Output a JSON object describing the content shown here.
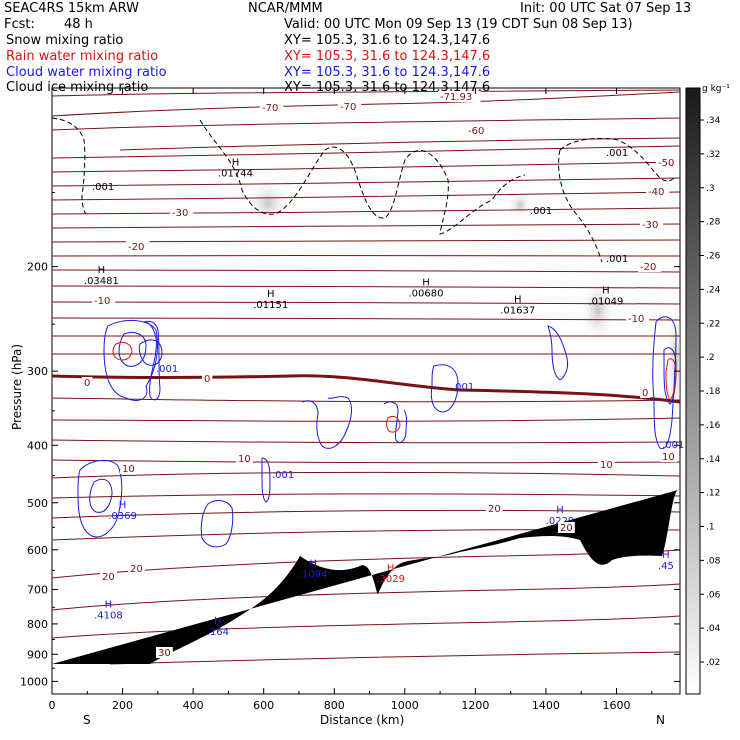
{
  "header": {
    "model": "SEAC4RS 15km ARW",
    "org": "NCAR/MMM",
    "init": "Init: 00 UTC Sat 07 Sep 13",
    "fcst_label": "Fcst:",
    "fcst_value": "48 h",
    "valid": "Valid: 00 UTC Mon 09 Sep 13 (19 CDT Sun 08 Sep 13)",
    "fields": [
      {
        "name": "Snow mixing ratio",
        "xy": "XY= 105.3, 31.6 to 124.3,147.6",
        "color": "#000000"
      },
      {
        "name": "Rain water mixing ratio",
        "xy": "XY= 105.3, 31.6 to 124.3,147.6",
        "color": "#e01010"
      },
      {
        "name": "Cloud water mixing ratio",
        "xy": "XY= 105.3, 31.6 to 124.3,147.6",
        "color": "#1a1ad8"
      },
      {
        "name": "Cloud ice mixing ratio",
        "xy": "XY= 105.3, 31.6 to 124.3,147.6",
        "color": "#000000"
      }
    ]
  },
  "chart_data": {
    "type": "contour-cross-section",
    "xlabel": "Distance (km)",
    "ylabel": "Pressure (hPa)",
    "xlim": [
      0,
      1780
    ],
    "ylim": [
      1050,
      100
    ],
    "x_ticks": [
      0,
      200,
      400,
      600,
      800,
      1000,
      1200,
      1400,
      1600
    ],
    "y_ticks": [
      200,
      300,
      400,
      500,
      600,
      700,
      800,
      900,
      1000
    ],
    "x_end_labels": {
      "left": "S",
      "right": "N"
    },
    "colorbar": {
      "unit": "g kg⁻¹",
      "ticks": [
        ".34",
        ".32",
        ".3",
        ".28",
        ".26",
        ".24",
        ".22",
        ".2",
        ".18",
        ".16",
        ".14",
        ".12",
        ".1",
        ".08",
        ".06",
        ".04",
        ".02"
      ]
    },
    "temperature_labels": [
      "-70",
      "-70",
      "-71.93",
      "-60",
      "-50",
      "-40",
      "-30",
      "-30",
      "-20",
      "-20",
      "-10",
      "-10",
      "0",
      "0",
      "0",
      "10",
      "10",
      "10",
      "10",
      "20",
      "20",
      "20",
      "20",
      "30"
    ],
    "maxima": [
      {
        "label": "H",
        "value": ".01744",
        "x": 520,
        "p": 135,
        "color": "#000000"
      },
      {
        "label": "H",
        "value": ".03481",
        "x": 140,
        "p": 205,
        "color": "#000000"
      },
      {
        "label": "H",
        "value": ".01151",
        "x": 620,
        "p": 225,
        "color": "#000000"
      },
      {
        "label": "H",
        "value": ".00680",
        "x": 1060,
        "p": 215,
        "color": "#000000"
      },
      {
        "label": "H",
        "value": ".01637",
        "x": 1320,
        "p": 230,
        "color": "#000000"
      },
      {
        "label": "H",
        "value": ".01049",
        "x": 1570,
        "p": 222,
        "color": "#000000"
      },
      {
        "label": "H",
        "value": ".0229",
        "x": 1440,
        "p": 520,
        "color": "#1a1ad8"
      },
      {
        "label": "H",
        "value": ".0369",
        "x": 200,
        "p": 510,
        "color": "#1a1ad8"
      },
      {
        "label": "H",
        "value": ".1094",
        "x": 740,
        "p": 640,
        "color": "#1a1ad8"
      },
      {
        "label": "H",
        "value": ".3029",
        "x": 960,
        "p": 652,
        "color": "#e01010"
      },
      {
        "label": "H",
        "value": ".4108",
        "x": 160,
        "p": 750,
        "color": "#1a1ad8"
      },
      {
        "label": "H",
        "value": ".164",
        "x": 470,
        "p": 800,
        "color": "#1a1ad8"
      },
      {
        "label": "H",
        "value": ".45",
        "x": 1740,
        "p": 620,
        "color": "#1a1ad8"
      }
    ],
    "small_labels": [
      {
        "text": ".001",
        "color": "#000000"
      },
      {
        "text": ".001",
        "color": "#000000"
      },
      {
        "text": ".001",
        "color": "#000000"
      },
      {
        "text": ".001",
        "color": "#000000"
      },
      {
        "text": ".001",
        "color": "#1a1ad8"
      },
      {
        "text": ".001",
        "color": "#1a1ad8"
      },
      {
        "text": ".001",
        "color": "#1a1ad8"
      },
      {
        "text": ".001",
        "color": "#1a1ad8"
      }
    ]
  }
}
